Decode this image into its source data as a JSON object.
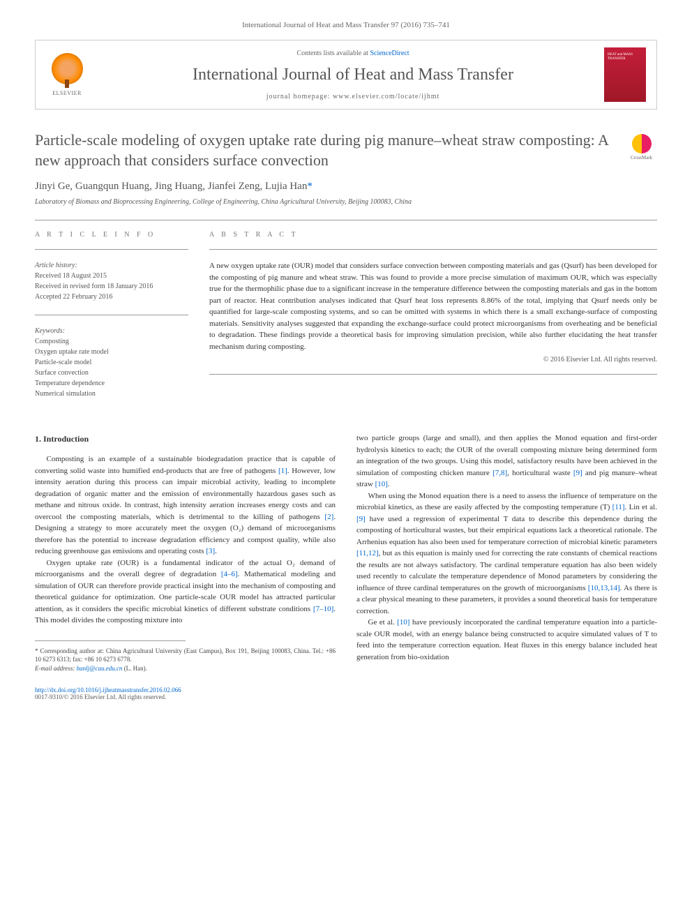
{
  "header": {
    "citation": "International Journal of Heat and Mass Transfer 97 (2016) 735–741",
    "contents_prefix": "Contents lists available at ",
    "contents_link": "ScienceDirect",
    "journal_name": "International Journal of Heat and Mass Transfer",
    "homepage_prefix": "journal homepage: ",
    "homepage_url": "www.elsevier.com/locate/ijhmt",
    "publisher": "ELSEVIER",
    "cover_text": "HEAT and MASS TRANSFER"
  },
  "article": {
    "title": "Particle-scale modeling of oxygen uptake rate during pig manure–wheat straw composting: A new approach that considers surface convection",
    "crossmark_label": "CrossMark",
    "authors_line": "Jinyi Ge, Guangqun Huang, Jing Huang, Jianfei Zeng, Lujia Han",
    "corresponding_marker": "*",
    "affiliation": "Laboratory of Biomass and Bioprocessing Engineering, College of Engineering, China Agricultural University, Beijing 100083, China"
  },
  "info": {
    "section_label": "A R T I C L E   I N F O",
    "history_label": "Article history:",
    "received": "Received 18 August 2015",
    "revised": "Received in revised form 18 January 2016",
    "accepted": "Accepted 22 February 2016",
    "keywords_label": "Keywords:",
    "keywords": [
      "Composting",
      "Oxygen uptake rate model",
      "Particle-scale model",
      "Surface convection",
      "Temperature dependence",
      "Numerical simulation"
    ]
  },
  "abstract": {
    "section_label": "A B S T R A C T",
    "text": "A new oxygen uptake rate (OUR) model that considers surface convection between composting materials and gas (Qsurf) has been developed for the composting of pig manure and wheat straw. This was found to provide a more precise simulation of maximum OUR, which was especially true for the thermophilic phase due to a significant increase in the temperature difference between the composting materials and gas in the bottom part of reactor. Heat contribution analyses indicated that Qsurf heat loss represents 8.86% of the total, implying that Qsurf needs only be quantified for large-scale composting systems, and so can be omitted with systems in which there is a small exchange-surface of composting materials. Sensitivity analyses suggested that expanding the exchange-surface could protect microorganisms from overheating and be beneficial to degradation. These findings provide a theoretical basis for improving simulation precision, while also further elucidating the heat transfer mechanism during composting.",
    "copyright": "© 2016 Elsevier Ltd. All rights reserved."
  },
  "body": {
    "intro_heading": "1. Introduction",
    "p1a": "Composting is an example of a sustainable biodegradation practice that is capable of converting solid waste into humified end-products that are free of pathogens ",
    "p1_ref1": "[1]",
    "p1b": ". However, low intensity aeration during this process can impair microbial activity, leading to incomplete degradation of organic matter and the emission of environmentally hazardous gases such as methane and nitrous oxide. In contrast, high intensity aeration increases energy costs and can overcool the composting materials, which is detrimental to the killing of pathogens ",
    "p1_ref2": "[2]",
    "p1c": ". Designing a strategy to more accurately meet the oxygen (O₂) demand of microorganisms therefore has the potential to increase degradation efficiency and compost quality, while also reducing greenhouse gas emissions and operating costs ",
    "p1_ref3": "[3]",
    "p1d": ".",
    "p2a": "Oxygen uptake rate (OUR) is a fundamental indicator of the actual O₂ demand of microorganisms and the overall degree of degradation ",
    "p2_ref1": "[4–6]",
    "p2b": ". Mathematical modeling and simulation of OUR can therefore provide practical insight into the mechanism of composting and theoretical guidance for optimization. One particle-scale OUR model has attracted particular attention, as it considers the specific microbial kinetics of different substrate conditions ",
    "p2_ref2": "[7–10]",
    "p2c": ". This model divides the composting mixture into",
    "p3a": "two particle groups (large and small), and then applies the Monod equation and first-order hydrolysis kinetics to each; the OUR of the overall composting mixture being determined form an integration of the two groups. Using this model, satisfactory results have been achieved in the simulation of composting chicken manure ",
    "p3_ref1": "[7,8]",
    "p3b": ", horticultural waste ",
    "p3_ref2": "[9]",
    "p3c": " and pig manure–wheat straw ",
    "p3_ref3": "[10]",
    "p3d": ".",
    "p4a": "When using the Monod equation there is a need to assess the influence of temperature on the microbial kinetics, as these are easily affected by the composting temperature (T) ",
    "p4_ref1": "[11]",
    "p4b": ". Lin et al. ",
    "p4_ref2": "[9]",
    "p4c": " have used a regression of experimental T data to describe this dependence during the composting of horticultural wastes, but their empirical equations lack a theoretical rationale. The Arrhenius equation has also been used for temperature correction of microbial kinetic parameters ",
    "p4_ref3": "[11,12]",
    "p4d": ", but as this equation is mainly used for correcting the rate constants of chemical reactions the results are not always satisfactory. The cardinal temperature equation has also been widely used recently to calculate the temperature dependence of Monod parameters by considering the influence of three cardinal temperatures on the growth of microorganisms ",
    "p4_ref4": "[10,13,14]",
    "p4e": ". As there is a clear physical meaning to these parameters, it provides a sound theoretical basis for temperature correction.",
    "p5a": "Ge et al. ",
    "p5_ref1": "[10]",
    "p5b": " have previously incorporated the cardinal temperature equation into a particle-scale OUR model, with an energy balance being constructed to acquire simulated values of T to feed into the temperature correction equation. Heat fluxes in this energy balance included heat generation from bio-oxidation"
  },
  "footnote": {
    "corr_text": "* Corresponding author at: China Agricultural University (East Campus), Box 191, Beijing 100083, China. Tel.: +86 10 6273 6313; fax: +86 10 6273 6778.",
    "email_label": "E-mail address: ",
    "email": "hanlj@cau.edu.cn",
    "email_suffix": " (L. Han)."
  },
  "footer": {
    "doi": "http://dx.doi.org/10.1016/j.ijheatmasstransfer.2016.02.066",
    "issn": "0017-9310/© 2016 Elsevier Ltd. All rights reserved."
  },
  "colors": {
    "link": "#0066cc",
    "text": "#333333",
    "muted": "#666666",
    "elsevier_orange": "#ff8c00",
    "cover_red": "#c41e3a"
  }
}
